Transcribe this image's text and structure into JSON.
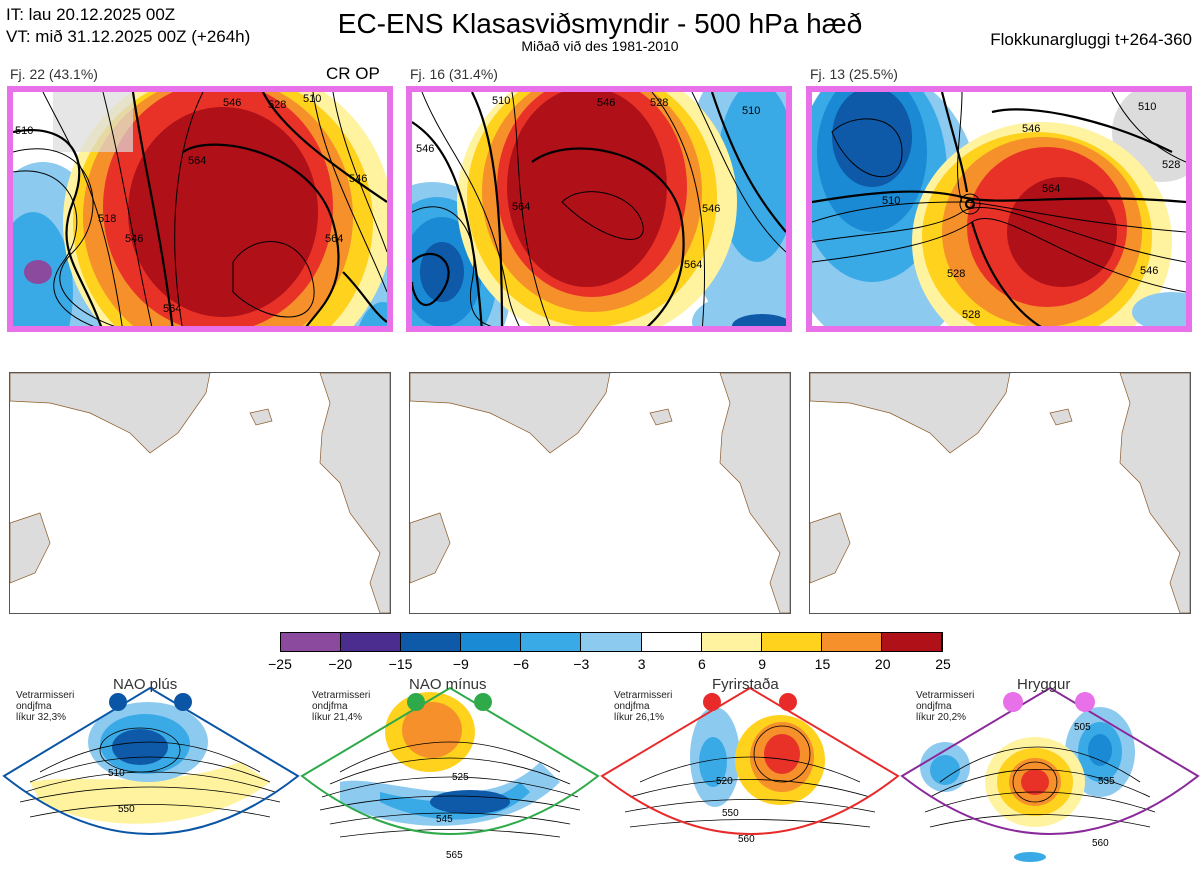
{
  "header": {
    "it_line": "IT: lau 20.12.2025 00Z",
    "vt_line": "VT: mið 31.12.2025 00Z  (+264h)",
    "title": "EC-ENS Klasasviðsmyndir - 500 hPa hæð",
    "subtitle": "Miðað við des 1981-2010",
    "window": "Flokkunargluggi t+264-360"
  },
  "clusters": [
    {
      "label": "Fj. 22 (43.1%)",
      "tag": "CR OP",
      "contours": [
        "510",
        "518",
        "546",
        "564",
        "546",
        "510",
        "528",
        "546",
        "564",
        "564"
      ]
    },
    {
      "label": "Fj. 16 (31.4%)",
      "tag": "",
      "contours": [
        "546",
        "510",
        "528",
        "564",
        "546",
        "564",
        "546",
        "510"
      ]
    },
    {
      "label": "Fj. 13 (25.5%)",
      "tag": "",
      "contours": [
        "510",
        "528",
        "546",
        "564",
        "510",
        "528",
        "528",
        "546"
      ]
    }
  ],
  "colors": {
    "frame": "#e870e8",
    "land": "#dcdcdc",
    "coast": "#8a5a2a"
  },
  "chart_data": {
    "type": "heatmap",
    "title": "EC-ENS Klasasviðsmyndir - 500 hPa hæð",
    "colorbar": {
      "ticks": [
        "−25",
        "−20",
        "−15",
        "−9",
        "−6",
        "−3",
        "3",
        "6",
        "9",
        "15",
        "20",
        "25"
      ],
      "bins": [
        -25,
        -20,
        -15,
        -9,
        -6,
        -3,
        3,
        6,
        9,
        15,
        20,
        25
      ],
      "colors": [
        "#8b4a9e",
        "#4b2d8f",
        "#0e59a8",
        "#1a8ad4",
        "#3aaae6",
        "#8dcaf0",
        "#ffffff",
        "#fff3a0",
        "#ffd21e",
        "#f5902a",
        "#e83228",
        "#b01018"
      ]
    },
    "clusters": [
      {
        "name": "Fj. 22",
        "percent": 43.1,
        "note": "CR OP"
      },
      {
        "name": "Fj. 16",
        "percent": 31.4
      },
      {
        "name": "Fj. 13",
        "percent": 25.5
      }
    ],
    "regimes": [
      {
        "name": "NAO plús",
        "lines": [
          "Vetrarmisseri",
          "ondjfma",
          "líkur 32,3%"
        ],
        "probability": 32.3,
        "border": "#0a55a5",
        "dot": "#0a55a5",
        "contours": [
          "510",
          "550"
        ]
      },
      {
        "name": "NAO mínus",
        "lines": [
          "Vetrarmisseri",
          "ondjfma",
          "líkur 21,4%"
        ],
        "probability": 21.4,
        "border": "#2eaa4a",
        "dot": "#2eaa4a",
        "contours": [
          "525",
          "545",
          "565"
        ]
      },
      {
        "name": "Fyrirstaða",
        "lines": [
          "Vetrarmisseri",
          "ondjfma",
          "líkur 26,1%"
        ],
        "probability": 26.1,
        "border": "#e82a2a",
        "dot": "#e82a2a",
        "contours": [
          "520",
          "550",
          "560"
        ]
      },
      {
        "name": "Hryggur",
        "lines": [
          "Vetrarmisseri",
          "ondjfma",
          "líkur 20,2%"
        ],
        "probability": 20.2,
        "border": "#8a2a9a",
        "dot": "#e870e8",
        "contours": [
          "505",
          "535",
          "560"
        ]
      }
    ]
  }
}
